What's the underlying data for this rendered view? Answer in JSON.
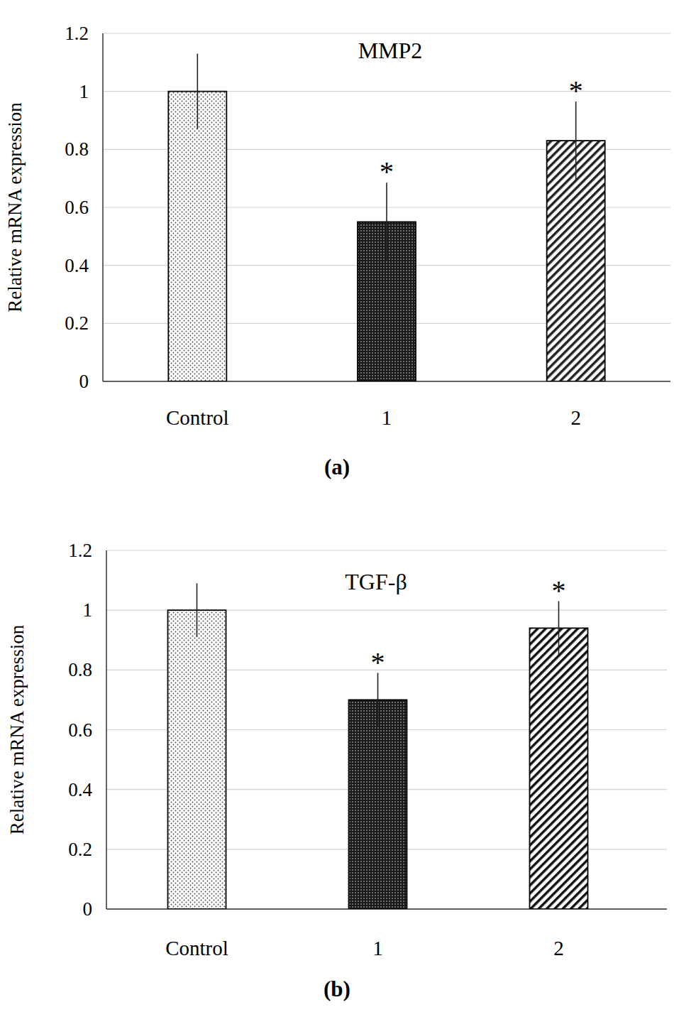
{
  "chart_data": [
    {
      "type": "bar",
      "title": "MMP2",
      "y_label": "Relative mRNA expression",
      "panel_label": "(a)",
      "categories": [
        "Control",
        "1",
        "2"
      ],
      "values": [
        1.0,
        0.55,
        0.83
      ],
      "errors": [
        0.13,
        0.135,
        0.135
      ],
      "significance": [
        null,
        "*",
        "*"
      ],
      "colors": [
        "#444444",
        "#1a1a1a",
        "#222222"
      ],
      "ylim": [
        0,
        1.2
      ],
      "yticks": [
        0,
        0.2,
        0.4,
        0.6,
        0.8,
        1,
        1.2
      ],
      "grid": true
    },
    {
      "type": "bar",
      "title": "TGF-β",
      "y_label": "Relative mRNA expression",
      "panel_label": "(b)",
      "categories": [
        "Control",
        "1",
        "2"
      ],
      "values": [
        1.0,
        0.7,
        0.94
      ],
      "errors": [
        0.09,
        0.09,
        0.09
      ],
      "significance": [
        null,
        "*",
        "*"
      ],
      "colors": [
        "#444444",
        "#1a1a1a",
        "#111111"
      ],
      "ylim": [
        0,
        1.2
      ],
      "yticks": [
        0,
        0.2,
        0.4,
        0.6,
        0.8,
        1,
        1.2
      ],
      "grid": true
    }
  ]
}
